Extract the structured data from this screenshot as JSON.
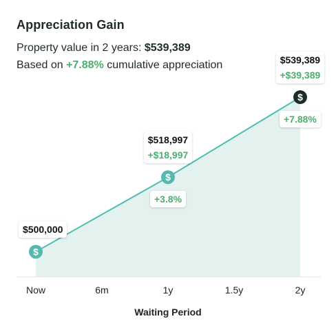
{
  "header": {
    "title": "Appreciation Gain",
    "value_prefix": "Property value in 2 years: ",
    "value": "$539,389",
    "based_prefix": "Based on ",
    "based_pct": "+7.88%",
    "based_suffix": " cumulative appreciation"
  },
  "colors": {
    "line": "#4fbdb3",
    "area": "#e3f1ef",
    "marker": "#56b8ae",
    "final_marker": "#1e2b2b",
    "gain": "#4caf6e"
  },
  "chart_data": {
    "type": "area",
    "title": "Appreciation Gain",
    "xlabel": "Waiting Period",
    "ylabel": "",
    "categories": [
      "Now",
      "6m",
      "1y",
      "1.5y",
      "2y"
    ],
    "x": [
      0,
      1,
      2,
      3,
      4
    ],
    "points": [
      {
        "x": 0,
        "value": 500000,
        "value_label": "$500,000",
        "gain_label": "",
        "pct_label": ""
      },
      {
        "x": 2,
        "value": 518997,
        "value_label": "$518,997",
        "gain_label": "+$18,997",
        "pct_label": "+3.8%"
      },
      {
        "x": 4,
        "value": 539389,
        "value_label": "$539,389",
        "gain_label": "+$39,389",
        "pct_label": "+7.88%"
      }
    ],
    "ylim": [
      482000,
      548000
    ],
    "grid": false,
    "marker_icon": "dollar-icon"
  }
}
